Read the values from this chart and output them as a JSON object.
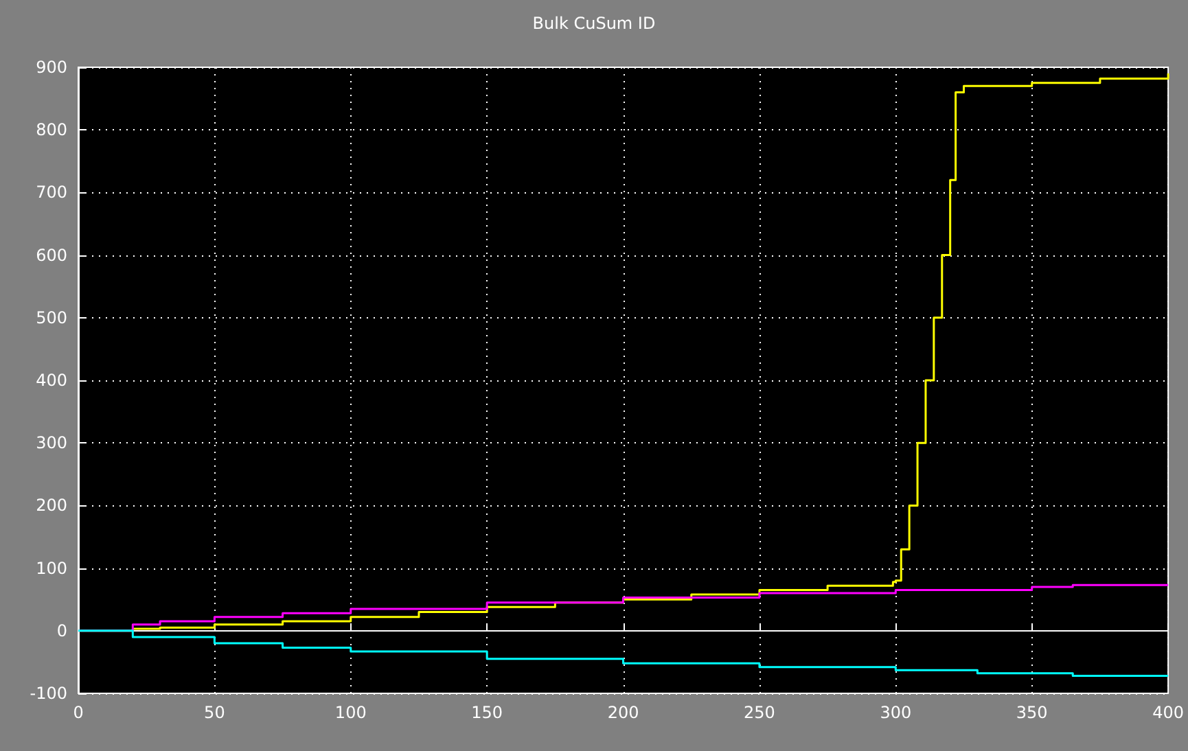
{
  "chart_data": {
    "type": "step",
    "title": "Bulk CuSum ID",
    "xlim": [
      0,
      400
    ],
    "xticks": [
      0,
      50,
      100,
      150,
      200,
      250,
      300,
      350,
      400
    ],
    "ylim": [
      -100,
      900
    ],
    "yticks": [
      -100,
      0,
      100,
      200,
      300,
      400,
      500,
      600,
      700,
      800,
      900
    ],
    "grid": true,
    "marker": "none",
    "line_style": "solid",
    "series": [
      {
        "color": "#ffff00",
        "x": [
          0,
          15,
          20,
          30,
          50,
          75,
          100,
          125,
          150,
          175,
          200,
          225,
          250,
          275,
          299,
          300,
          302,
          305,
          308,
          311,
          314,
          317,
          320,
          322,
          325,
          350,
          375,
          400
        ],
        "values": [
          0,
          0,
          3,
          5,
          10,
          15,
          22,
          30,
          38,
          45,
          50,
          58,
          65,
          72,
          78,
          80,
          130,
          200,
          300,
          400,
          500,
          600,
          720,
          860,
          870,
          875,
          882,
          890
        ]
      },
      {
        "color": "#ff00ff",
        "x": [
          0,
          15,
          20,
          30,
          50,
          75,
          100,
          150,
          200,
          250,
          300,
          350,
          365,
          400
        ],
        "values": [
          0,
          0,
          10,
          15,
          22,
          28,
          35,
          45,
          53,
          60,
          65,
          70,
          73,
          73
        ]
      },
      {
        "color": "#00ffff",
        "x": [
          0,
          15,
          20,
          50,
          75,
          100,
          150,
          200,
          250,
          300,
          330,
          365,
          400
        ],
        "values": [
          0,
          0,
          -10,
          -20,
          -27,
          -33,
          -45,
          -52,
          -58,
          -63,
          -68,
          -72,
          -73
        ]
      }
    ]
  }
}
